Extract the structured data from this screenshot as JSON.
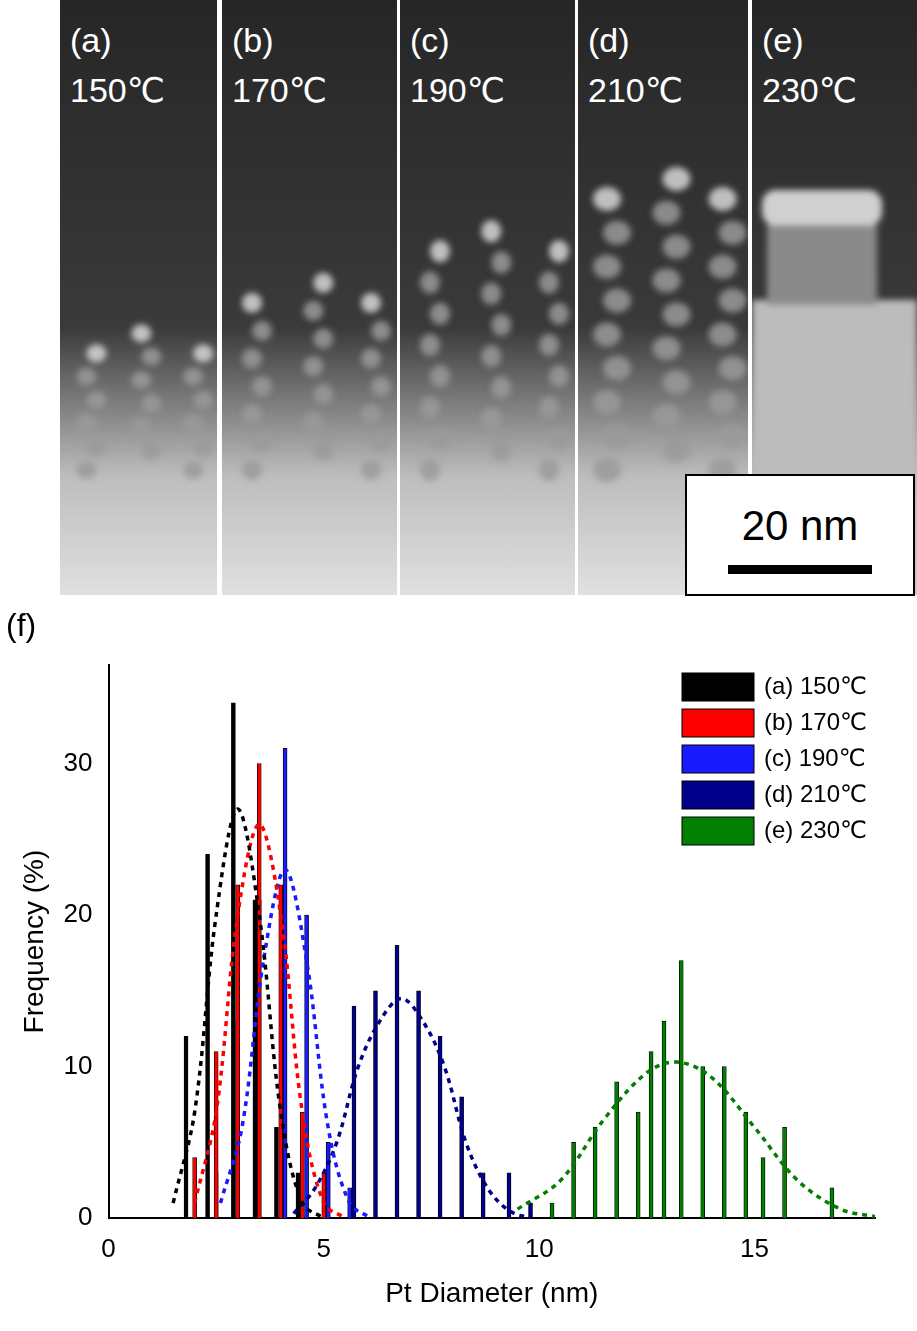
{
  "images": [
    {
      "label": "(a)",
      "temperature": "150℃"
    },
    {
      "label": "(b)",
      "temperature": "170℃"
    },
    {
      "label": "(c)",
      "temperature": "190℃"
    },
    {
      "label": "(d)",
      "temperature": "210℃"
    },
    {
      "label": "(e)",
      "temperature": "230℃"
    }
  ],
  "scale_bar": "20 nm",
  "chart_data": {
    "type": "bar",
    "panel": "(f)",
    "x_label": "Pt Diameter (nm)",
    "y_label": "Frequency (%)",
    "xlim": [
      0,
      17.8
    ],
    "xticks": [
      0,
      5,
      10,
      15
    ],
    "ylim": [
      0,
      36.5
    ],
    "yticks": [
      0,
      10,
      20,
      30
    ],
    "grid": false,
    "legend": "upper right",
    "series": [
      {
        "name": "(a) 150℃",
        "color": "#000000",
        "x": [
          1.8,
          2.3,
          2.9,
          3.4,
          3.9,
          4.4
        ],
        "values": [
          12,
          24,
          34,
          21,
          6,
          3
        ],
        "line_style": "dashed",
        "fit_x": [
          1.5,
          2.0,
          2.5,
          3.0,
          3.5,
          4.0,
          4.5,
          5.0
        ],
        "fit_values": [
          1,
          7,
          20,
          27,
          20,
          7,
          1,
          0
        ]
      },
      {
        "name": "(b) 170℃",
        "color": "#ff0000",
        "x": [
          2.0,
          2.5,
          3.0,
          3.5,
          4.0,
          4.5,
          5.0
        ],
        "values": [
          4,
          11,
          22,
          30,
          22,
          7,
          3
        ],
        "line_style": "dashed",
        "fit_x": [
          2.0,
          2.5,
          3.0,
          3.5,
          4.0,
          4.5,
          5.0,
          5.5
        ],
        "fit_values": [
          1,
          7,
          20,
          26,
          20,
          7,
          1,
          0
        ]
      },
      {
        "name": "(c) 190℃",
        "color": "#1a1aff",
        "x": [
          2.5,
          3.0,
          3.5,
          4.1,
          4.6,
          5.1,
          5.6
        ],
        "values": [
          3,
          13,
          21,
          31,
          20,
          5,
          2
        ],
        "line_style": "dashed",
        "fit_x": [
          2.6,
          3.1,
          3.6,
          4.1,
          4.6,
          5.1,
          5.6,
          6.1
        ],
        "fit_values": [
          1,
          6,
          17,
          23,
          17,
          6,
          1,
          0
        ]
      },
      {
        "name": "(d) 210℃",
        "color": "#00008b",
        "x": [
          5.1,
          5.7,
          6.2,
          6.7,
          7.2,
          7.7,
          8.2,
          8.7,
          9.3,
          9.8
        ],
        "values": [
          5,
          14,
          15,
          18,
          15,
          12,
          8,
          3,
          3,
          1
        ],
        "line_style": "dashed",
        "fit_x": [
          4.3,
          4.8,
          5.3,
          5.8,
          6.3,
          6.8,
          7.3,
          7.8,
          8.3,
          8.8,
          9.3,
          9.8
        ],
        "fit_values": [
          0.3,
          2,
          5,
          10,
          13,
          14.5,
          13,
          10,
          5,
          2,
          0.5,
          0
        ]
      },
      {
        "name": "(e) 230℃",
        "color": "#007f00",
        "x": [
          10.3,
          10.8,
          11.3,
          11.8,
          12.3,
          12.6,
          12.9,
          13.3,
          13.8,
          14.3,
          14.8,
          15.2,
          15.7,
          16.8
        ],
        "values": [
          1,
          5,
          6,
          9,
          7,
          11,
          13,
          17,
          10,
          10,
          7,
          4,
          6,
          2
        ],
        "line_style": "dashed",
        "fit_x": [
          9.5,
          10.5,
          11.5,
          12.5,
          13.2,
          14.0,
          15.0,
          16.0,
          17.0,
          17.8
        ],
        "fit_values": [
          0.6,
          2.5,
          6.5,
          9.6,
          10.3,
          9.3,
          6,
          2.5,
          0.6,
          0.1
        ]
      }
    ]
  }
}
